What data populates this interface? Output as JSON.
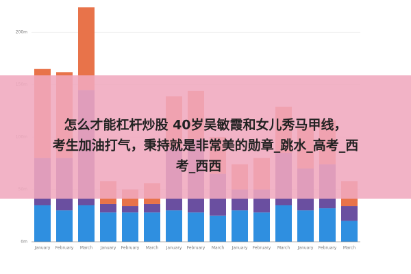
{
  "chart_data": {
    "type": "bar",
    "stacked": true,
    "categories": [
      "January",
      "February",
      "March",
      "January",
      "February",
      "March",
      "January",
      "February",
      "March",
      "January",
      "February",
      "March",
      "January",
      "February",
      "March"
    ],
    "series": [
      {
        "color": "#2f8fe0",
        "values": [
          35,
          30,
          35,
          28,
          28,
          28,
          30,
          28,
          25,
          30,
          28,
          35,
          30,
          32,
          20
        ]
      },
      {
        "color": "#6a4fa0",
        "values": [
          45,
          50,
          110,
          8,
          6,
          8,
          60,
          70,
          40,
          20,
          22,
          50,
          40,
          42,
          14
        ]
      },
      {
        "color": "#e8734a",
        "values": [
          85,
          82,
          79,
          22,
          16,
          20,
          49,
          46,
          35,
          24,
          30,
          44,
          40,
          42,
          24
        ]
      }
    ],
    "ylim": [
      0,
      225
    ],
    "yticks": [
      {
        "value": 0,
        "label": "0m"
      },
      {
        "value": 50,
        "label": "50m"
      },
      {
        "value": 100,
        "label": "100m"
      },
      {
        "value": 150,
        "label": "150m"
      },
      {
        "value": 200,
        "label": "200m"
      }
    ],
    "grid": true
  },
  "overlay": {
    "lines": [
      "怎么才能杠杆炒股 40岁吴敏霞和女儿秀马甲线，",
      "考生加油打气，秉持就是非常美的勋章_跳水_高考_西",
      "考_西西"
    ]
  }
}
